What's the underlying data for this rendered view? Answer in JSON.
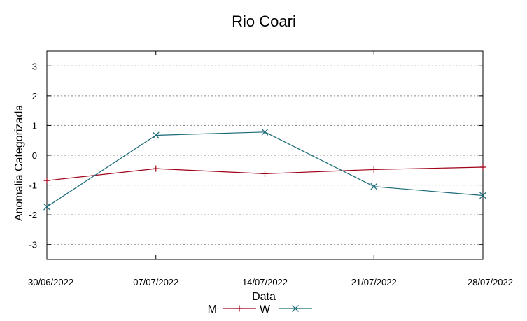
{
  "chart_data": {
    "type": "line",
    "title": "Rio Coari",
    "xlabel": "Data",
    "ylabel": "Anomalia Categorizada",
    "ylim": [
      -3.5,
      3.5
    ],
    "yticks": [
      "3",
      "2",
      "1",
      "0",
      "-1",
      "-2",
      "-3"
    ],
    "x": [
      "30/06/2022",
      "07/07/2022",
      "14/07/2022",
      "21/07/2022",
      "28/07/2022"
    ],
    "grid": "horizontal-dashed",
    "legend_position": "bottom-center",
    "series": [
      {
        "name": "M",
        "color": "#a0001a",
        "marker": "plus",
        "values": [
          -0.85,
          -0.45,
          -0.62,
          -0.48,
          -0.4
        ]
      },
      {
        "name": "W",
        "color": "#1b6b78",
        "marker": "x",
        "values": [
          -1.73,
          0.67,
          0.78,
          -1.05,
          -1.35
        ]
      }
    ]
  }
}
